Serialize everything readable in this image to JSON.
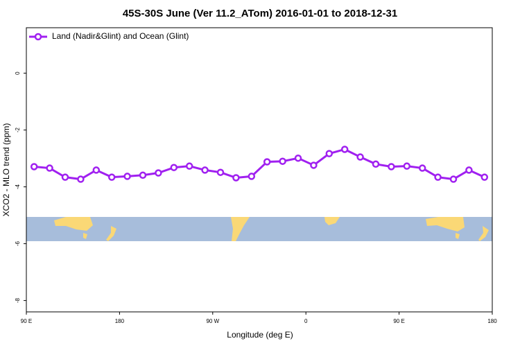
{
  "chart_data": {
    "type": "line",
    "title": "45S-30S June (Ver 11.2_ATom)   2016-01-01 to 2018-12-31",
    "x_label": "Longitude (deg E)",
    "y_label": "XCO2 - MLO trend (ppm)",
    "x": [
      97.5,
      112.5,
      127.5,
      142.5,
      157.5,
      172.5,
      187.5,
      202.5,
      217.5,
      232.5,
      247.5,
      262.5,
      277.5,
      292.5,
      307.5,
      322.5,
      337.5,
      352.5,
      367.5,
      382.5,
      397.5,
      412.5,
      427.5,
      442.5,
      457.5,
      472.5,
      487.5,
      502.5,
      517.5,
      532.5
    ],
    "series": [
      {
        "name": "Land (Nadir&Glint) and Ocean (Glint)",
        "color": "#a020f0",
        "values": [
          -3.29,
          -3.34,
          -3.66,
          -3.73,
          -3.41,
          -3.66,
          -3.63,
          -3.59,
          -3.51,
          -3.32,
          -3.27,
          -3.41,
          -3.49,
          -3.68,
          -3.63,
          -3.12,
          -3.1,
          -2.99,
          -3.24,
          -2.83,
          -2.68,
          -2.95,
          -3.2,
          -3.29,
          -3.27,
          -3.34,
          -3.66,
          -3.73,
          -3.41,
          -3.66
        ]
      }
    ],
    "xlim": [
      90,
      540
    ],
    "xticks": [
      {
        "value": 90,
        "label": "90 E"
      },
      {
        "value": 180,
        "label": "180"
      },
      {
        "value": 270,
        "label": "90 W"
      },
      {
        "value": 360,
        "label": "0"
      },
      {
        "value": 450,
        "label": "90 E"
      },
      {
        "value": 540,
        "label": "180"
      }
    ],
    "ylim": [
      -8.4,
      1.6
    ],
    "yticks": [
      0,
      -2,
      -4,
      -6,
      -8
    ],
    "legend_position": "top-left"
  }
}
